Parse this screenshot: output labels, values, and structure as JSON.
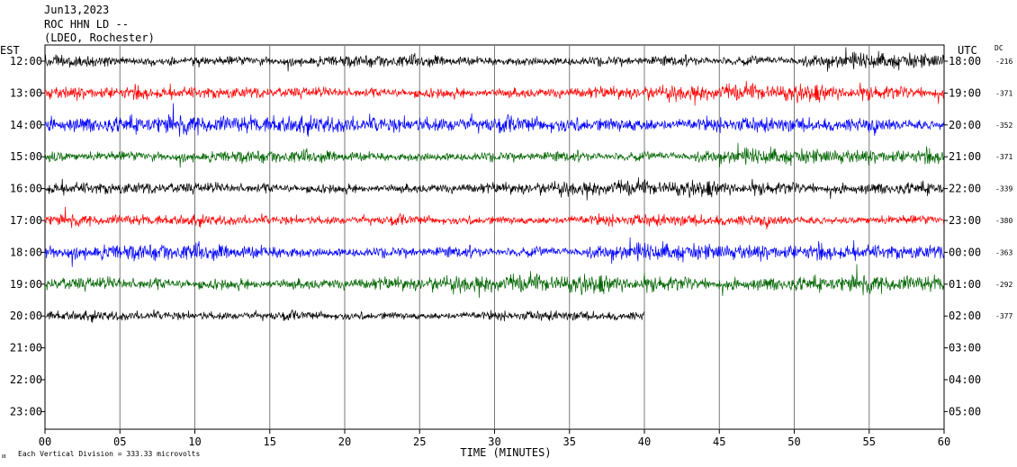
{
  "header": {
    "date": "Jun13,2023",
    "station": "ROC HHN LD --",
    "network": "(LDEO, Rochester)"
  },
  "left_axis_label": "EST",
  "right_axis_label": "UTC",
  "dc_label": "DC",
  "footer": {
    "logo_text": "ᴎ",
    "scale_note": "Each Vertical Division =  333.33 microvolts",
    "xlabel": "TIME (MINUTES)"
  },
  "chart_data": {
    "type": "line",
    "title": "Jun13,2023 ROC HHN LD -- (LDEO, Rochester)",
    "xlabel": "TIME (MINUTES)",
    "xlim": [
      0,
      60
    ],
    "x_ticks": [
      "00",
      "05",
      "10",
      "15",
      "20",
      "25",
      "30",
      "35",
      "40",
      "45",
      "50",
      "55",
      "60"
    ],
    "rows_est": [
      "12:00",
      "13:00",
      "14:00",
      "15:00",
      "16:00",
      "17:00",
      "18:00",
      "19:00",
      "20:00",
      "21:00",
      "22:00",
      "23:00"
    ],
    "rows_utc": [
      "18:00",
      "19:00",
      "20:00",
      "21:00",
      "22:00",
      "23:00",
      "00:00",
      "01:00",
      "02:00",
      "03:00",
      "04:00",
      "05:00"
    ],
    "grid": "vertical lines every 5 minutes",
    "traces": [
      {
        "row": "12:00",
        "color": "#000000",
        "dc": "-216",
        "minutes": 60,
        "amplitude": 11
      },
      {
        "row": "13:00",
        "color": "#ff0000",
        "dc": "-371",
        "minutes": 60,
        "amplitude": 12
      },
      {
        "row": "14:00",
        "color": "#0000ff",
        "dc": "-352",
        "minutes": 60,
        "amplitude": 13
      },
      {
        "row": "15:00",
        "color": "#006400",
        "dc": "-371",
        "minutes": 60,
        "amplitude": 11
      },
      {
        "row": "16:00",
        "color": "#000000",
        "dc": "-339",
        "minutes": 60,
        "amplitude": 11
      },
      {
        "row": "17:00",
        "color": "#ff0000",
        "dc": "-380",
        "minutes": 60,
        "amplitude": 11
      },
      {
        "row": "18:00",
        "color": "#0000ff",
        "dc": "-363",
        "minutes": 60,
        "amplitude": 12
      },
      {
        "row": "19:00",
        "color": "#006400",
        "dc": "-292",
        "minutes": 60,
        "amplitude": 13
      },
      {
        "row": "20:00",
        "color": "#000000",
        "dc": "-377",
        "minutes": 40,
        "amplitude": 9
      }
    ]
  }
}
